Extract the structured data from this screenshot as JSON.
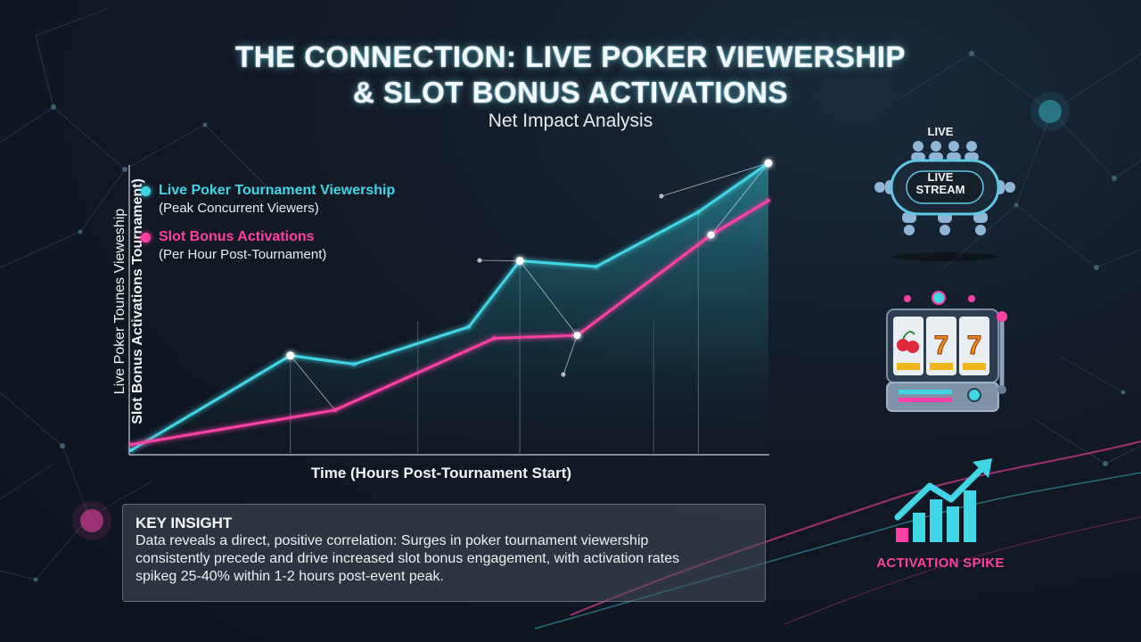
{
  "title_line1": "THE CONNECTION: LIVE POKER VIEWERSHIP",
  "title_line2": "& SLOT BONUS ACTIVATIONS",
  "subtitle": "Net Impact Analysis",
  "chart_data": {
    "type": "area",
    "xlabel": "Time (Hours Post-Tournament Start)",
    "ylabel_line1": "Live Poker Tounes Vieweship",
    "ylabel_line2": "Slot Bonus Activations Tournament)",
    "grid": "vertical",
    "legend_position": "top-left",
    "colors": {
      "viewership": "#3fd6e6",
      "activations": "#ff3fa4"
    },
    "series": [
      {
        "name": "Live Poker Tournament Viewership",
        "subname": "(Peak Concurrent Viewers)",
        "points": [
          [
            0,
            0
          ],
          [
            0.25,
            0.33
          ],
          [
            0.35,
            0.3
          ],
          [
            0.53,
            0.43
          ],
          [
            0.61,
            0.66
          ],
          [
            0.73,
            0.64
          ],
          [
            0.89,
            0.83
          ],
          [
            1.0,
            1.0
          ]
        ]
      },
      {
        "name": "Slot Bonus Activations",
        "subname": "(Per Hour Post-Tournament)",
        "points": [
          [
            0,
            0.02
          ],
          [
            0.32,
            0.14
          ],
          [
            0.57,
            0.39
          ],
          [
            0.7,
            0.4
          ],
          [
            0.91,
            0.75
          ],
          [
            1.0,
            0.87
          ]
        ]
      }
    ]
  },
  "insight": {
    "heading": "KEY INSIGHT",
    "text": "Data reveals a direct, positive correlation: Surges in poker tournament viewership consistently precede and drive increased slot bonus engagement, with activation rates spikeg 25-40% within 1-2 hours post-event peak."
  },
  "icons": {
    "poker_table": {
      "top_label": "LIVE",
      "center_label_1": "LIVE",
      "center_label_2": "STREAM"
    },
    "slot_machine": {
      "name": "slot-machine-icon"
    },
    "spike": {
      "label": "ACTIVATION SPIKE"
    }
  }
}
